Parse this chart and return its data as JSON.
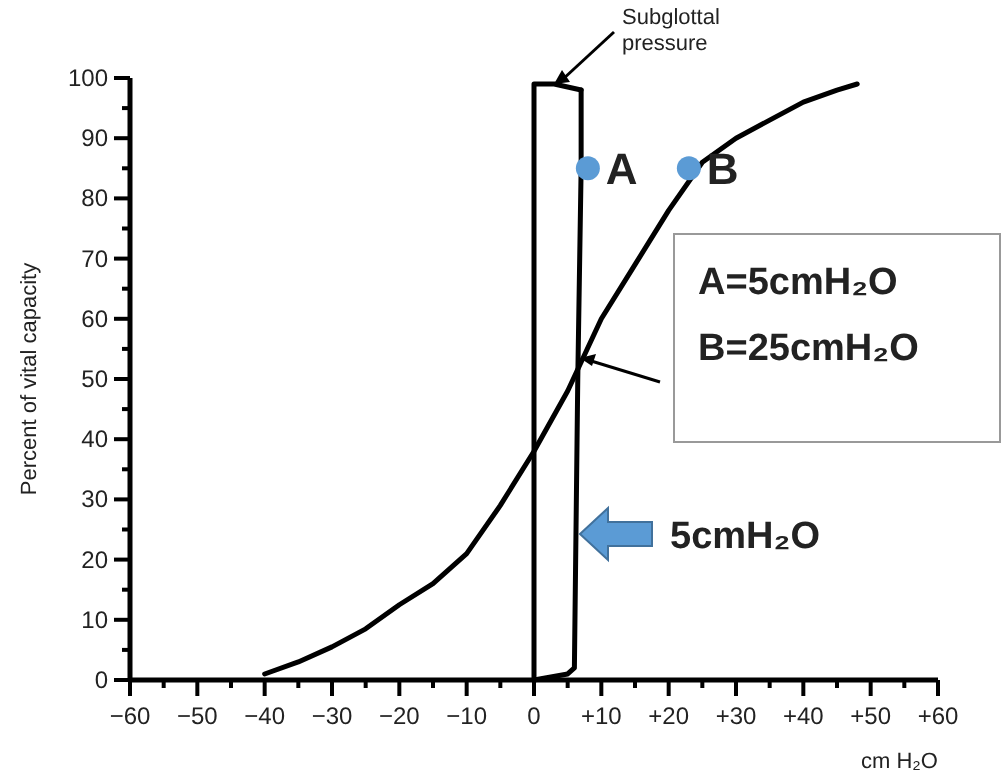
{
  "chart_data": {
    "type": "line",
    "xlabel": "cm H₂O",
    "ylabel": "Percent of vital capacity",
    "xlim": [
      -60,
      60
    ],
    "ylim": [
      0,
      100
    ],
    "xticks": [
      {
        "value": -60,
        "label": "−60"
      },
      {
        "value": -55,
        "label": null
      },
      {
        "value": -50,
        "label": "−50"
      },
      {
        "value": -45,
        "label": null
      },
      {
        "value": -40,
        "label": "−40"
      },
      {
        "value": -35,
        "label": null
      },
      {
        "value": -30,
        "label": "−30"
      },
      {
        "value": -25,
        "label": null
      },
      {
        "value": -20,
        "label": "−20"
      },
      {
        "value": -15,
        "label": null
      },
      {
        "value": -10,
        "label": "−10"
      },
      {
        "value": -5,
        "label": null
      },
      0,
      {
        "value": 5,
        "label": null
      },
      {
        "value": 10,
        "label": "+10"
      },
      {
        "value": 15,
        "label": null
      },
      {
        "value": 20,
        "label": "+20"
      },
      {
        "value": 25,
        "label": null
      },
      {
        "value": 30,
        "label": "+30"
      },
      {
        "value": 35,
        "label": null
      },
      {
        "value": 40,
        "label": "+40"
      },
      {
        "value": 45,
        "label": null
      },
      {
        "value": 50,
        "label": "+50"
      },
      {
        "value": 55,
        "label": null
      },
      {
        "value": 60,
        "label": "+60"
      }
    ],
    "yticks": [
      0,
      {
        "value": 5,
        "label": null
      },
      10,
      {
        "value": 15,
        "label": null
      },
      20,
      {
        "value": 25,
        "label": null
      },
      30,
      {
        "value": 35,
        "label": null
      },
      40,
      {
        "value": 45,
        "label": null
      },
      50,
      {
        "value": 55,
        "label": null
      },
      60,
      {
        "value": 65,
        "label": null
      },
      70,
      {
        "value": 75,
        "label": null
      },
      80,
      {
        "value": 85,
        "label": null
      },
      90,
      {
        "value": 95,
        "label": null
      },
      100
    ],
    "series": [
      {
        "color": "#000000",
        "x": [
          -40,
          -35,
          -30,
          -25,
          -20,
          -15,
          -10,
          -5,
          0,
          5,
          10,
          15,
          20,
          25,
          30,
          35,
          40,
          45,
          48
        ],
        "values": [
          1,
          3,
          5.5,
          8.5,
          12.5,
          16,
          21,
          29,
          38,
          48,
          60,
          69,
          78,
          86,
          90,
          93,
          96,
          98,
          99
        ]
      },
      {
        "name": "Subglottal pressure",
        "color": "#000000",
        "x": [
          0,
          0,
          3,
          7
        ],
        "values": [
          0,
          99,
          99,
          98
        ]
      },
      {
        "color": "#000000",
        "x": [
          7,
          7,
          6.5,
          6,
          5,
          0
        ],
        "values": [
          98,
          85,
          50,
          2,
          1,
          0
        ]
      },
      {
        "name": "A",
        "type": "scatter",
        "color": "#5b9bd5",
        "x": [
          8
        ],
        "values": [
          85
        ]
      },
      {
        "name": "B",
        "type": "scatter",
        "color": "#5b9bd5",
        "x": [
          23
        ],
        "values": [
          85
        ]
      }
    ],
    "annotations": [
      "A=5cmH₂O",
      "B=25cmH₂O",
      "5cmH₂O"
    ]
  }
}
